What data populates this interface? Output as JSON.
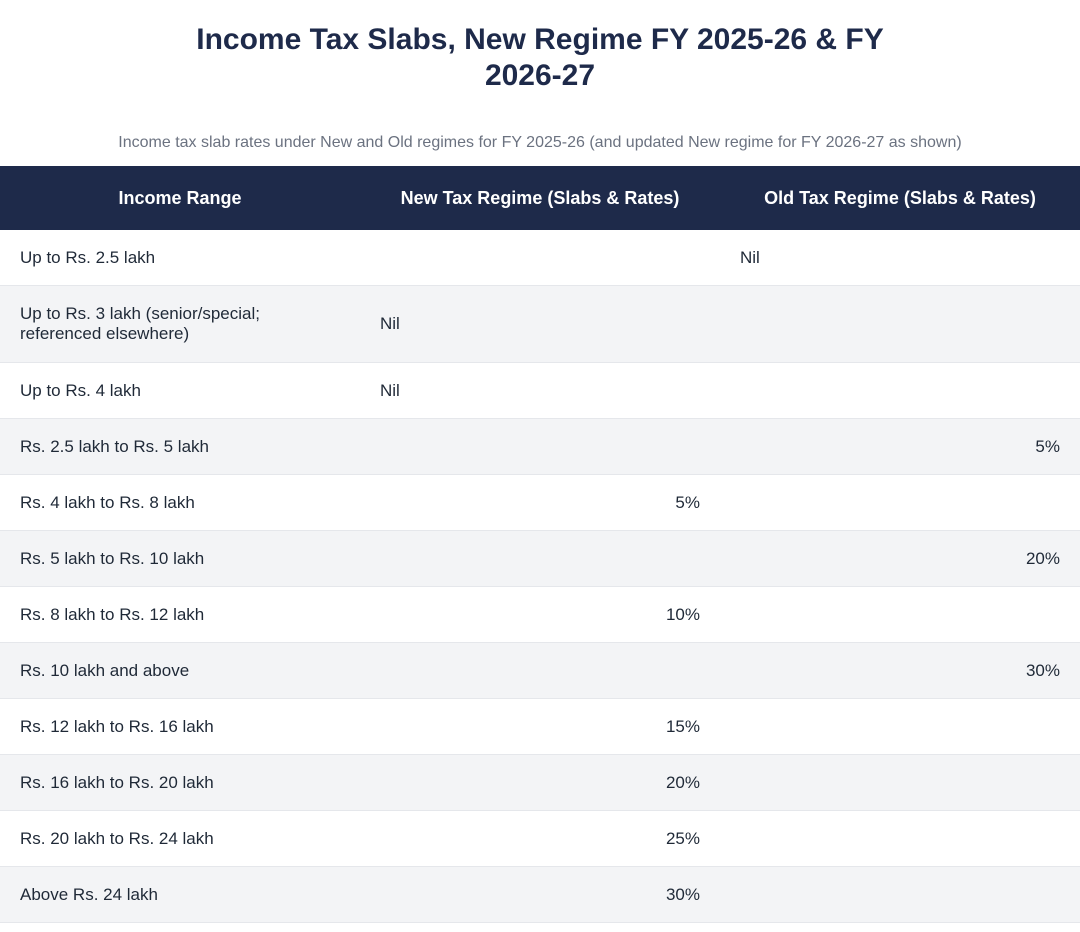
{
  "title": "Income Tax Slabs, New Regime FY 2025-26 & FY 2026-27",
  "subtitle": "Income tax slab rates under New and Old regimes for FY 2025-26 (and updated New regime for FY 2026-27 as shown)",
  "table": {
    "headers": [
      "Income Range",
      "New Tax Regime (Slabs & Rates)",
      "Old Tax Regime (Slabs & Rates)"
    ],
    "rows": [
      {
        "range": "Up to Rs. 2.5 lakh",
        "new": "",
        "old": "Nil"
      },
      {
        "range": "Up to Rs. 3 lakh (senior/special; referenced elsewhere)",
        "new": "Nil",
        "old": ""
      },
      {
        "range": "Up to Rs. 4 lakh",
        "new": "Nil",
        "old": ""
      },
      {
        "range": "Rs. 2.5 lakh to Rs. 5 lakh",
        "new": "",
        "old": "5%"
      },
      {
        "range": "Rs. 4 lakh to Rs. 8 lakh",
        "new": "5%",
        "old": ""
      },
      {
        "range": "Rs. 5 lakh to Rs. 10 lakh",
        "new": "",
        "old": "20%"
      },
      {
        "range": "Rs. 8 lakh to Rs. 12 lakh",
        "new": "10%",
        "old": ""
      },
      {
        "range": "Rs. 10 lakh and above",
        "new": "",
        "old": "30%"
      },
      {
        "range": "Rs. 12 lakh to Rs. 16 lakh",
        "new": "15%",
        "old": ""
      },
      {
        "range": "Rs. 16 lakh to Rs. 20 lakh",
        "new": "20%",
        "old": ""
      },
      {
        "range": "Rs. 20 lakh to Rs. 24 lakh",
        "new": "25%",
        "old": ""
      },
      {
        "range": "Above Rs. 24 lakh",
        "new": "30%",
        "old": ""
      }
    ]
  }
}
